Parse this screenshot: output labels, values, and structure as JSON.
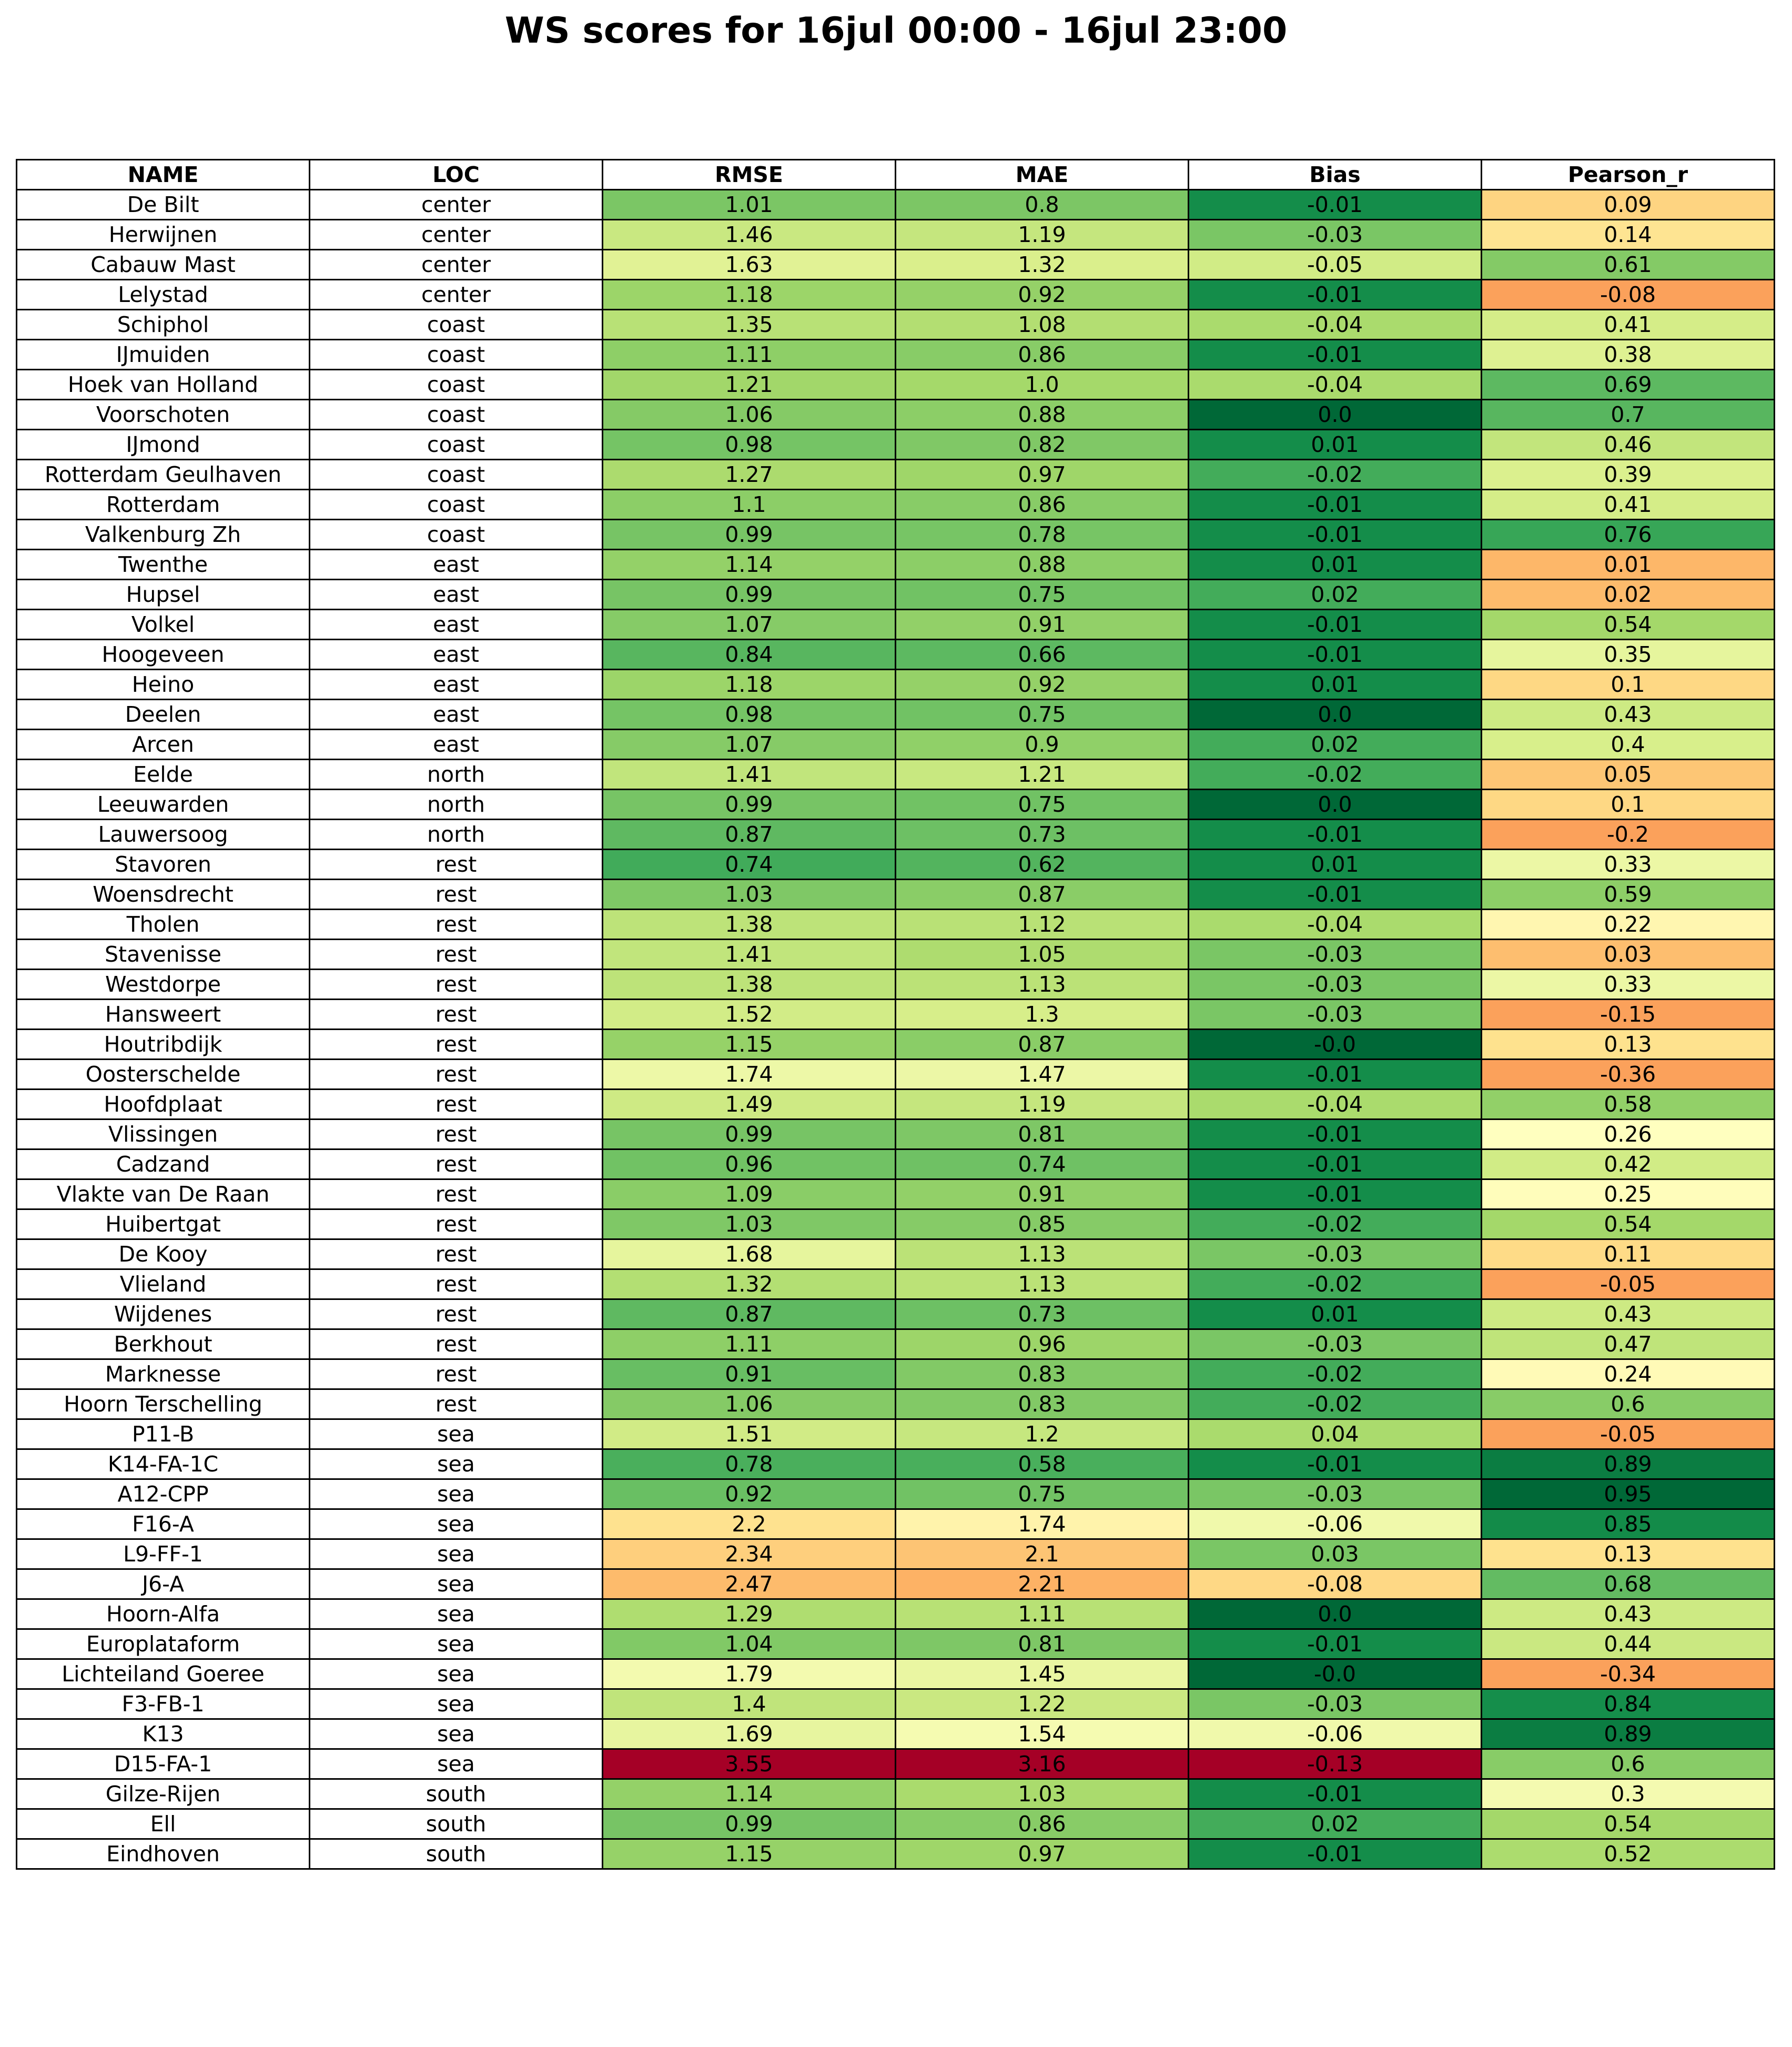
{
  "title": "WS scores for 16jul 00:00 - 16jul 23:00",
  "chart_data": {
    "type": "table",
    "title": "WS scores for 16jul 00:00 - 16jul 23:00",
    "columns": [
      "NAME",
      "LOC",
      "RMSE",
      "MAE",
      "Bias",
      "Pearson_r"
    ],
    "colormap": "RdYlGn_r (per-column, green = low, red = high)",
    "rows": [
      [
        "De Bilt",
        "center",
        "1.01",
        "0.8",
        "-0.01",
        "0.09"
      ],
      [
        "Herwijnen",
        "center",
        "1.46",
        "1.19",
        "-0.03",
        "0.14"
      ],
      [
        "Cabauw Mast",
        "center",
        "1.63",
        "1.32",
        "-0.05",
        "0.61"
      ],
      [
        "Lelystad",
        "center",
        "1.18",
        "0.92",
        "-0.01",
        "-0.08"
      ],
      [
        "Schiphol",
        "coast",
        "1.35",
        "1.08",
        "-0.04",
        "0.41"
      ],
      [
        "IJmuiden",
        "coast",
        "1.11",
        "0.86",
        "-0.01",
        "0.38"
      ],
      [
        "Hoek van Holland",
        "coast",
        "1.21",
        "1.0",
        "-0.04",
        "0.69"
      ],
      [
        "Voorschoten",
        "coast",
        "1.06",
        "0.88",
        "0.0",
        "0.7"
      ],
      [
        "IJmond",
        "coast",
        "0.98",
        "0.82",
        "0.01",
        "0.46"
      ],
      [
        "Rotterdam Geulhaven",
        "coast",
        "1.27",
        "0.97",
        "-0.02",
        "0.39"
      ],
      [
        "Rotterdam",
        "coast",
        "1.1",
        "0.86",
        "-0.01",
        "0.41"
      ],
      [
        "Valkenburg Zh",
        "coast",
        "0.99",
        "0.78",
        "-0.01",
        "0.76"
      ],
      [
        "Twenthe",
        "east",
        "1.14",
        "0.88",
        "0.01",
        "0.01"
      ],
      [
        "Hupsel",
        "east",
        "0.99",
        "0.75",
        "0.02",
        "0.02"
      ],
      [
        "Volkel",
        "east",
        "1.07",
        "0.91",
        "-0.01",
        "0.54"
      ],
      [
        "Hoogeveen",
        "east",
        "0.84",
        "0.66",
        "-0.01",
        "0.35"
      ],
      [
        "Heino",
        "east",
        "1.18",
        "0.92",
        "0.01",
        "0.1"
      ],
      [
        "Deelen",
        "east",
        "0.98",
        "0.75",
        "0.0",
        "0.43"
      ],
      [
        "Arcen",
        "east",
        "1.07",
        "0.9",
        "0.02",
        "0.4"
      ],
      [
        "Eelde",
        "north",
        "1.41",
        "1.21",
        "-0.02",
        "0.05"
      ],
      [
        "Leeuwarden",
        "north",
        "0.99",
        "0.75",
        "0.0",
        "0.1"
      ],
      [
        "Lauwersoog",
        "north",
        "0.87",
        "0.73",
        "-0.01",
        "-0.2"
      ],
      [
        "Stavoren",
        "rest",
        "0.74",
        "0.62",
        "0.01",
        "0.33"
      ],
      [
        "Woensdrecht",
        "rest",
        "1.03",
        "0.87",
        "-0.01",
        "0.59"
      ],
      [
        "Tholen",
        "rest",
        "1.38",
        "1.12",
        "-0.04",
        "0.22"
      ],
      [
        "Stavenisse",
        "rest",
        "1.41",
        "1.05",
        "-0.03",
        "0.03"
      ],
      [
        "Westdorpe",
        "rest",
        "1.38",
        "1.13",
        "-0.03",
        "0.33"
      ],
      [
        "Hansweert",
        "rest",
        "1.52",
        "1.3",
        "-0.03",
        "-0.15"
      ],
      [
        "Houtribdijk",
        "rest",
        "1.15",
        "0.87",
        "-0.0",
        "0.13"
      ],
      [
        "Oosterschelde",
        "rest",
        "1.74",
        "1.47",
        "-0.01",
        "-0.36"
      ],
      [
        "Hoofdplaat",
        "rest",
        "1.49",
        "1.19",
        "-0.04",
        "0.58"
      ],
      [
        "Vlissingen",
        "rest",
        "0.99",
        "0.81",
        "-0.01",
        "0.26"
      ],
      [
        "Cadzand",
        "rest",
        "0.96",
        "0.74",
        "-0.01",
        "0.42"
      ],
      [
        "Vlakte van De Raan",
        "rest",
        "1.09",
        "0.91",
        "-0.01",
        "0.25"
      ],
      [
        "Huibertgat",
        "rest",
        "1.03",
        "0.85",
        "-0.02",
        "0.54"
      ],
      [
        "De Kooy",
        "rest",
        "1.68",
        "1.13",
        "-0.03",
        "0.11"
      ],
      [
        "Vlieland",
        "rest",
        "1.32",
        "1.13",
        "-0.02",
        "-0.05"
      ],
      [
        "Wijdenes",
        "rest",
        "0.87",
        "0.73",
        "0.01",
        "0.43"
      ],
      [
        "Berkhout",
        "rest",
        "1.11",
        "0.96",
        "-0.03",
        "0.47"
      ],
      [
        "Marknesse",
        "rest",
        "0.91",
        "0.83",
        "-0.02",
        "0.24"
      ],
      [
        "Hoorn Terschelling",
        "rest",
        "1.06",
        "0.83",
        "-0.02",
        "0.6"
      ],
      [
        "P11-B",
        "sea",
        "1.51",
        "1.2",
        "0.04",
        "-0.05"
      ],
      [
        "K14-FA-1C",
        "sea",
        "0.78",
        "0.58",
        "-0.01",
        "0.89"
      ],
      [
        "A12-CPP",
        "sea",
        "0.92",
        "0.75",
        "-0.03",
        "0.95"
      ],
      [
        "F16-A",
        "sea",
        "2.2",
        "1.74",
        "-0.06",
        "0.85"
      ],
      [
        "L9-FF-1",
        "sea",
        "2.34",
        "2.1",
        "0.03",
        "0.13"
      ],
      [
        "J6-A",
        "sea",
        "2.47",
        "2.21",
        "-0.08",
        "0.68"
      ],
      [
        "Hoorn-Alfa",
        "sea",
        "1.29",
        "1.11",
        "0.0",
        "0.43"
      ],
      [
        "Europlataform",
        "sea",
        "1.04",
        "0.81",
        "-0.01",
        "0.44"
      ],
      [
        "Lichteiland Goeree",
        "sea",
        "1.79",
        "1.45",
        "-0.0",
        "-0.34"
      ],
      [
        "F3-FB-1",
        "sea",
        "1.4",
        "1.22",
        "-0.03",
        "0.84"
      ],
      [
        "K13",
        "sea",
        "1.69",
        "1.54",
        "-0.06",
        "0.89"
      ],
      [
        "D15-FA-1",
        "sea",
        "3.55",
        "3.16",
        "-0.13",
        "0.6"
      ],
      [
        "Gilze-Rijen",
        "south",
        "1.14",
        "1.03",
        "-0.01",
        "0.3"
      ],
      [
        "Ell",
        "south",
        "0.99",
        "0.86",
        "0.02",
        "0.54"
      ],
      [
        "Eindhoven",
        "south",
        "1.15",
        "0.97",
        "-0.01",
        "0.52"
      ]
    ]
  }
}
